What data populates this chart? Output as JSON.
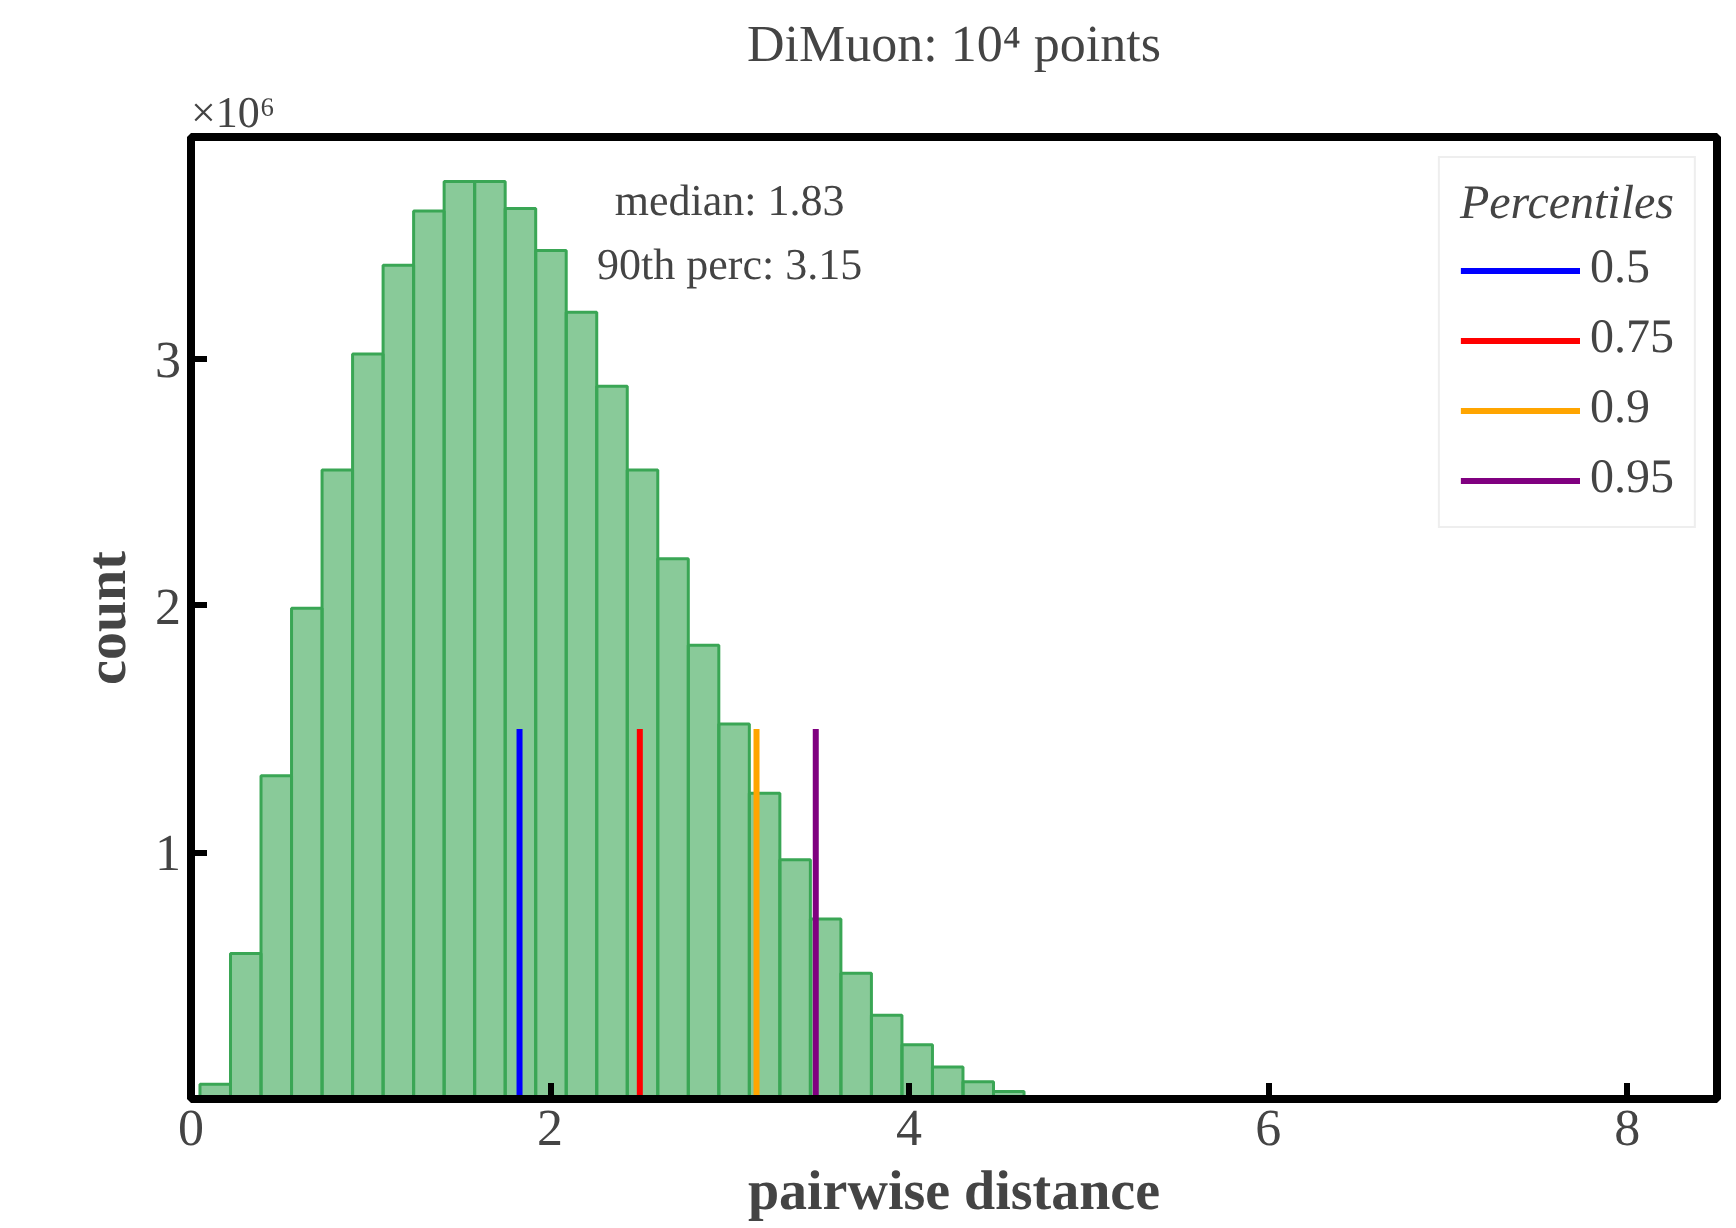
{
  "chart_data": {
    "type": "histogram",
    "title": "DiMuon: 10⁴ points",
    "xlabel": "pairwise distance",
    "ylabel": "count",
    "bins": [
      0.05,
      0.22,
      0.39,
      0.56,
      0.73,
      0.9,
      1.07,
      1.24,
      1.41,
      1.58,
      1.75,
      1.92,
      2.09,
      2.26,
      2.43,
      2.6,
      2.77,
      2.94,
      3.11,
      3.28,
      3.45,
      3.62,
      3.79,
      3.96,
      4.13,
      4.3,
      4.47,
      4.64,
      4.81
    ],
    "values": [
      0.06,
      0.59,
      1.31,
      1.99,
      2.55,
      3.02,
      3.38,
      3.6,
      3.72,
      3.72,
      3.61,
      3.44,
      3.19,
      2.89,
      2.55,
      2.19,
      1.84,
      1.52,
      1.24,
      0.97,
      0.73,
      0.51,
      0.34,
      0.22,
      0.13,
      0.07,
      0.03,
      0.01
    ],
    "color": "#3aa655",
    "series": [
      {
        "type": "line",
        "name": "0.5",
        "color": "#0000ff",
        "x": [
          1.83,
          1.83
        ],
        "values": [
          0,
          1.5
        ]
      },
      {
        "type": "line",
        "name": "0.75",
        "color": "#ff0000",
        "x": [
          2.5,
          2.5
        ],
        "values": [
          0,
          1.5
        ]
      },
      {
        "type": "line",
        "name": "0.9",
        "color": "#ffa500",
        "x": [
          3.15,
          3.15
        ],
        "values": [
          0,
          1.5
        ]
      },
      {
        "type": "line",
        "name": "0.95",
        "color": "#800080",
        "x": [
          3.48,
          3.48
        ],
        "values": [
          0,
          1.5
        ]
      }
    ],
    "legend_title": "Percentiles",
    "legend": "top right",
    "annotations": [
      "×10⁶",
      "median: 1.83",
      "90th perc: 3.15"
    ],
    "xlim": [
      0,
      8.5
    ],
    "ylim": [
      0,
      3.9
    ],
    "xticks": [
      0,
      2,
      4,
      6,
      8
    ],
    "yticks": [
      1,
      2,
      3
    ],
    "grid": false
  }
}
